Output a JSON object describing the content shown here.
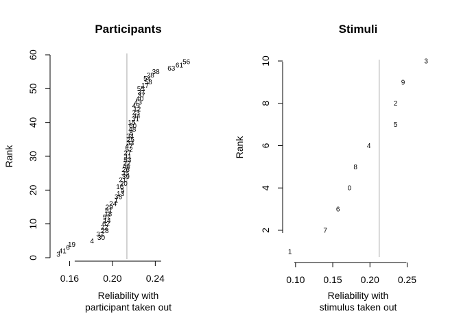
{
  "chart_data": [
    {
      "type": "scatter",
      "title": "Participants",
      "xlabel": "Reliability with\nparticipant taken out",
      "ylabel": "Rank",
      "xlim": [
        0.145,
        0.275
      ],
      "ylim": [
        0,
        60
      ],
      "xticks": [
        0.16,
        0.2,
        0.24
      ],
      "xtick_labels": [
        "0.16",
        "0.20",
        "0.24"
      ],
      "yticks": [
        0,
        10,
        20,
        30,
        40,
        50,
        60
      ],
      "ytick_labels": [
        "0",
        "10",
        "20",
        "30",
        "40",
        "50",
        "60"
      ],
      "reference_x": 0.2135,
      "points": [
        {
          "x": 0.1495,
          "y": 1,
          "label": "3"
        },
        {
          "x": 0.1535,
          "y": 2,
          "label": "41"
        },
        {
          "x": 0.1585,
          "y": 3,
          "label": "6"
        },
        {
          "x": 0.162,
          "y": 4,
          "label": "19"
        },
        {
          "x": 0.181,
          "y": 5,
          "label": "4"
        },
        {
          "x": 0.1895,
          "y": 6,
          "label": "30"
        },
        {
          "x": 0.1885,
          "y": 7,
          "label": "32"
        },
        {
          "x": 0.193,
          "y": 8,
          "label": "28"
        },
        {
          "x": 0.1925,
          "y": 9,
          "label": "22"
        },
        {
          "x": 0.194,
          "y": 10,
          "label": "62"
        },
        {
          "x": 0.195,
          "y": 11,
          "label": "14"
        },
        {
          "x": 0.1945,
          "y": 12,
          "label": "57"
        },
        {
          "x": 0.196,
          "y": 13,
          "label": "18"
        },
        {
          "x": 0.1965,
          "y": 14,
          "label": "51"
        },
        {
          "x": 0.197,
          "y": 15,
          "label": "29"
        },
        {
          "x": 0.2005,
          "y": 16,
          "label": "24"
        },
        {
          "x": 0.2035,
          "y": 17,
          "label": "1"
        },
        {
          "x": 0.2055,
          "y": 18,
          "label": "36"
        },
        {
          "x": 0.2075,
          "y": 19,
          "label": "13"
        },
        {
          "x": 0.2095,
          "y": 20,
          "label": "5"
        },
        {
          "x": 0.207,
          "y": 21,
          "label": "16"
        },
        {
          "x": 0.2105,
          "y": 22,
          "label": "20"
        },
        {
          "x": 0.2095,
          "y": 23,
          "label": "21"
        },
        {
          "x": 0.2125,
          "y": 24,
          "label": "39"
        },
        {
          "x": 0.212,
          "y": 25,
          "label": "35"
        },
        {
          "x": 0.2125,
          "y": 26,
          "label": "26"
        },
        {
          "x": 0.213,
          "y": 27,
          "label": "46"
        },
        {
          "x": 0.2135,
          "y": 28,
          "label": "22"
        },
        {
          "x": 0.214,
          "y": 29,
          "label": "53"
        },
        {
          "x": 0.2145,
          "y": 30,
          "label": "11"
        },
        {
          "x": 0.214,
          "y": 31,
          "label": "27"
        },
        {
          "x": 0.2155,
          "y": 32,
          "label": "52"
        },
        {
          "x": 0.2155,
          "y": 33,
          "label": "47"
        },
        {
          "x": 0.2165,
          "y": 34,
          "label": "33"
        },
        {
          "x": 0.217,
          "y": 35,
          "label": "25"
        },
        {
          "x": 0.2165,
          "y": 36,
          "label": "34"
        },
        {
          "x": 0.2175,
          "y": 37,
          "label": "8"
        },
        {
          "x": 0.2185,
          "y": 38,
          "label": "48"
        },
        {
          "x": 0.219,
          "y": 39,
          "label": "60"
        },
        {
          "x": 0.218,
          "y": 40,
          "label": "15"
        },
        {
          "x": 0.2215,
          "y": 41,
          "label": "31"
        },
        {
          "x": 0.2225,
          "y": 42,
          "label": "44"
        },
        {
          "x": 0.222,
          "y": 43,
          "label": "23"
        },
        {
          "x": 0.223,
          "y": 44,
          "label": "12"
        },
        {
          "x": 0.222,
          "y": 45,
          "label": "49"
        },
        {
          "x": 0.224,
          "y": 46,
          "label": "43"
        },
        {
          "x": 0.2255,
          "y": 47,
          "label": "40"
        },
        {
          "x": 0.227,
          "y": 48,
          "label": "37"
        },
        {
          "x": 0.227,
          "y": 49,
          "label": "37"
        },
        {
          "x": 0.2265,
          "y": 50,
          "label": "55"
        },
        {
          "x": 0.2305,
          "y": 51,
          "label": "17"
        },
        {
          "x": 0.2335,
          "y": 52,
          "label": "58"
        },
        {
          "x": 0.2325,
          "y": 53,
          "label": "54"
        },
        {
          "x": 0.2355,
          "y": 54,
          "label": "28"
        },
        {
          "x": 0.2405,
          "y": 55,
          "label": "38"
        },
        {
          "x": 0.255,
          "y": 56,
          "label": "63"
        },
        {
          "x": 0.2625,
          "y": 57,
          "label": "61"
        },
        {
          "x": 0.269,
          "y": 58,
          "label": "56"
        }
      ]
    },
    {
      "type": "scatter",
      "title": "Stimuli",
      "xlabel": "Reliability with\nstimulus taken out",
      "ylabel": "Rank",
      "xlim": [
        0.09,
        0.28
      ],
      "ylim": [
        0.8,
        10
      ],
      "xticks": [
        0.1,
        0.15,
        0.2,
        0.25
      ],
      "xtick_labels": [
        "0.10",
        "0.15",
        "0.20",
        "0.25"
      ],
      "yticks": [
        2,
        4,
        6,
        8,
        10
      ],
      "ytick_labels": [
        "2",
        "4",
        "6",
        "8",
        "10"
      ],
      "reference_x": 0.2125,
      "points": [
        {
          "x": 0.0925,
          "y": 1,
          "label": "1"
        },
        {
          "x": 0.14,
          "y": 2,
          "label": "7"
        },
        {
          "x": 0.157,
          "y": 3,
          "label": "6"
        },
        {
          "x": 0.1725,
          "y": 4,
          "label": "0"
        },
        {
          "x": 0.1805,
          "y": 5,
          "label": "8"
        },
        {
          "x": 0.1985,
          "y": 6,
          "label": "4"
        },
        {
          "x": 0.2345,
          "y": 7,
          "label": "5"
        },
        {
          "x": 0.2345,
          "y": 8,
          "label": "2"
        },
        {
          "x": 0.2445,
          "y": 9,
          "label": "9"
        },
        {
          "x": 0.2755,
          "y": 10,
          "label": "3"
        }
      ]
    }
  ]
}
